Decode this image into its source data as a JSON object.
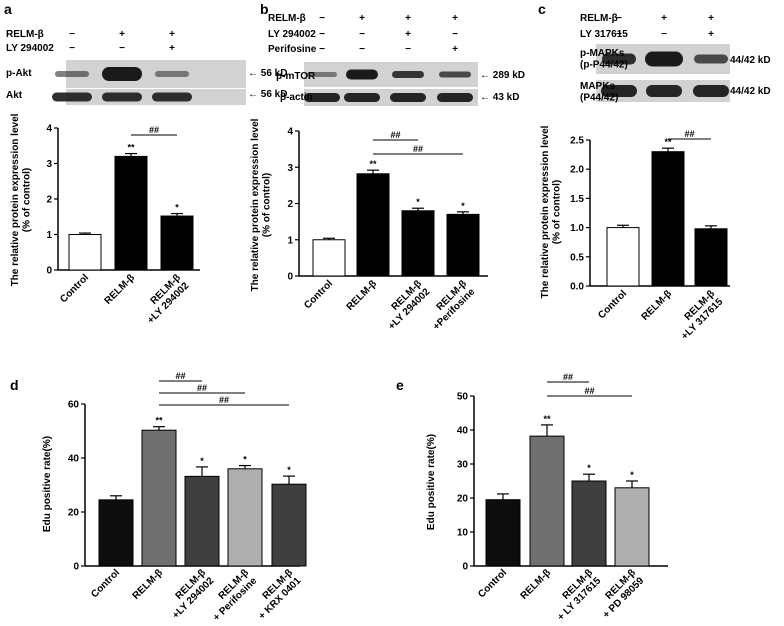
{
  "panels": {
    "a": {
      "letter": "a",
      "treat_rows": [
        {
          "label": "RELM-β",
          "marks": [
            "−",
            "+",
            "+"
          ]
        },
        {
          "label": "LY 294002",
          "marks": [
            "−",
            "−",
            "+"
          ]
        }
      ],
      "blots": [
        {
          "label": "p-Akt",
          "kd": "← 56 kD"
        },
        {
          "label": "Akt",
          "kd": "← 56 kD"
        }
      ],
      "ylabel": "The relative protein expression level\n(% of control)"
    },
    "b": {
      "letter": "b",
      "treat_rows": [
        {
          "label": "RELM-β",
          "marks": [
            "−",
            "+",
            "+",
            "+"
          ]
        },
        {
          "label": "LY 294002",
          "marks": [
            "−",
            "−",
            "+",
            "−"
          ]
        },
        {
          "label": "Perifosine",
          "marks": [
            "−",
            "−",
            "−",
            "+"
          ]
        }
      ],
      "blots": [
        {
          "label": "p-mTOR",
          "kd": "← 289 kD"
        },
        {
          "label": "β-actin",
          "kd": "← 43 kD"
        }
      ],
      "ylabel": "The relative protein expression level\n(% of control)"
    },
    "c": {
      "letter": "c",
      "treat_rows": [
        {
          "label": "RELM-β",
          "marks": [
            "−",
            "+",
            "+"
          ]
        },
        {
          "label": "LY 317615",
          "marks": [
            "−",
            "−",
            "+"
          ]
        }
      ],
      "blots": [
        {
          "label": "p-MAPKs\n(p-P44/42)",
          "kd": "44/42 kD"
        },
        {
          "label": "MAPKs\n(P44/42)",
          "kd": "44/42 kD"
        }
      ],
      "ylabel": "The relative protein expression level\n(% of control)"
    },
    "d": {
      "letter": "d",
      "ylabel": "Edu positive rate(%)"
    },
    "e": {
      "letter": "e",
      "ylabel": "Edu positive rate(%)"
    }
  },
  "chart_data": [
    {
      "id": "a",
      "type": "bar",
      "categories": [
        "Control",
        "RELM-β",
        "RELM-β\n+LY 294002"
      ],
      "values": [
        1.0,
        3.2,
        1.52
      ],
      "errors": [
        0.04,
        0.08,
        0.07
      ],
      "colors": [
        "#ffffff",
        "#000000",
        "#000000"
      ],
      "ylim": [
        0,
        4
      ],
      "yticks": [
        "0",
        "1",
        "2",
        "3",
        "4"
      ],
      "sig": [
        "",
        "**",
        "*"
      ],
      "brackets": [
        {
          "from": 1,
          "to": 2,
          "label": "##"
        }
      ]
    },
    {
      "id": "b",
      "type": "bar",
      "categories": [
        "Control",
        "RELM-β",
        "RELM-β\n+LY 294002",
        "RELM-β\n+Perifosine"
      ],
      "values": [
        1.0,
        2.82,
        1.8,
        1.7
      ],
      "errors": [
        0.04,
        0.1,
        0.07,
        0.07
      ],
      "colors": [
        "#ffffff",
        "#000000",
        "#000000",
        "#000000"
      ],
      "ylim": [
        0,
        4
      ],
      "yticks": [
        "0",
        "1",
        "2",
        "3",
        "4"
      ],
      "sig": [
        "",
        "**",
        "*",
        "*"
      ],
      "brackets": [
        {
          "from": 1,
          "to": 2,
          "label": "##"
        },
        {
          "from": 1,
          "to": 3,
          "label": "##"
        }
      ]
    },
    {
      "id": "c",
      "type": "bar",
      "categories": [
        "Control",
        "RELM-β",
        "RELM-β\n+LY 317615"
      ],
      "values": [
        1.0,
        2.3,
        0.98
      ],
      "errors": [
        0.04,
        0.06,
        0.05
      ],
      "colors": [
        "#ffffff",
        "#000000",
        "#000000"
      ],
      "ylim": [
        0,
        2.5
      ],
      "yticks": [
        "0.0",
        "0.5",
        "1.0",
        "1.5",
        "2.0",
        "2.5"
      ],
      "sig": [
        "",
        "**",
        ""
      ],
      "brackets": [
        {
          "from": 1,
          "to": 2,
          "label": "##"
        }
      ]
    },
    {
      "id": "d",
      "type": "bar",
      "categories": [
        "Control",
        "RELM-β",
        "RELM-β\n+LY 294002",
        "RELM-β\n+ Perifosine",
        "RELM-β\n+ KRX 0401"
      ],
      "values": [
        24.5,
        50.3,
        33.2,
        36.0,
        30.3
      ],
      "errors": [
        1.5,
        1.3,
        3.5,
        1.2,
        3.0
      ],
      "colors": [
        "#0d0d0d",
        "#707070",
        "#3f3f3f",
        "#aeaeae",
        "#3f3f3f"
      ],
      "ylim": [
        0,
        60
      ],
      "yticks": [
        "0",
        "20",
        "40",
        "60"
      ],
      "sig": [
        "",
        "**",
        "*",
        "*",
        "*"
      ],
      "brackets": [
        {
          "from": 1,
          "to": 2,
          "label": "##"
        },
        {
          "from": 1,
          "to": 3,
          "label": "##"
        },
        {
          "from": 1,
          "to": 4,
          "label": "##"
        }
      ]
    },
    {
      "id": "e",
      "type": "bar",
      "categories": [
        "Control",
        "RELM-β",
        "RELM-β\n+ LY 317615",
        "RELM-β\n+ PD 98059"
      ],
      "values": [
        19.5,
        38.2,
        25.0,
        23.0
      ],
      "errors": [
        1.7,
        3.3,
        2.0,
        2.0
      ],
      "colors": [
        "#0d0d0d",
        "#707070",
        "#3f3f3f",
        "#aeaeae"
      ],
      "ylim": [
        0,
        50
      ],
      "yticks": [
        "0",
        "10",
        "20",
        "30",
        "40",
        "50"
      ],
      "sig": [
        "",
        "**",
        "*",
        "*"
      ],
      "brackets": [
        {
          "from": 1,
          "to": 2,
          "label": "##"
        },
        {
          "from": 1,
          "to": 3,
          "label": "##"
        }
      ]
    }
  ]
}
